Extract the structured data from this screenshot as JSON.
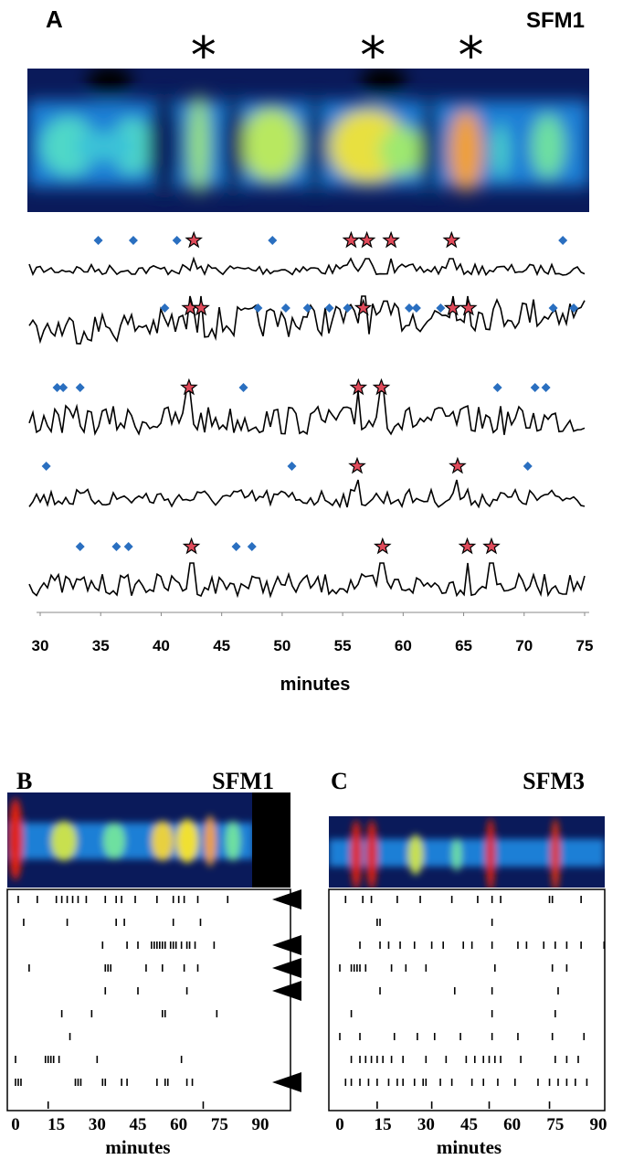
{
  "panel_a": {
    "label": "A",
    "title": "SFM1",
    "asterisks": [
      {
        "label": "*",
        "minute": 43.5
      },
      {
        "label": "*",
        "minute": 57.5
      },
      {
        "label": "*",
        "minute": 65.6
      }
    ],
    "xlim": [
      30,
      75
    ],
    "xticks": [
      30,
      35,
      40,
      45,
      50,
      55,
      60,
      65,
      70,
      75
    ],
    "xlabel": "minutes",
    "rows": [
      {
        "diamonds": [
          34.8,
          37.7,
          41.3,
          49.2,
          73.2
        ],
        "stars": [
          42.7,
          55.7,
          57,
          59,
          64
        ]
      },
      {
        "diamonds": [
          40.3,
          48,
          50.3,
          52.1,
          53.9,
          55.4,
          60.5,
          61.1,
          63.1,
          72.4,
          74.1
        ],
        "stars": [
          42.4,
          43.3,
          56.7,
          64.1,
          65.4
        ]
      },
      {
        "diamonds": [
          31.4,
          31.9,
          33.3,
          46.8,
          67.8,
          70.9,
          71.8
        ],
        "stars": [
          42.3,
          56.3,
          58.2
        ]
      },
      {
        "diamonds": [
          30.5,
          50.8,
          70.3
        ],
        "stars": [
          56.2,
          64.5
        ]
      },
      {
        "diamonds": [
          33.3,
          36.3,
          37.3,
          46.2,
          47.5
        ],
        "stars": [
          42.5,
          58.3,
          65.3,
          67.3
        ]
      }
    ]
  },
  "panel_b": {
    "label": "B",
    "title": "SFM1",
    "xlim": [
      0,
      90
    ],
    "xticks": [
      0,
      15,
      30,
      45,
      60,
      75,
      90
    ],
    "xlabel": "minutes",
    "arrow_rows": [
      0,
      2,
      3,
      4,
      8
    ],
    "rows": [
      [
        1,
        8,
        15,
        17,
        19,
        21,
        23,
        26,
        33,
        37,
        39,
        44,
        52,
        58,
        60,
        62,
        67,
        78
      ],
      [
        3,
        19,
        37,
        40,
        58,
        68
      ],
      [
        32,
        41,
        45,
        50,
        51,
        52,
        53,
        54,
        55,
        57,
        58,
        59,
        61,
        63,
        64,
        66,
        73
      ],
      [
        5,
        33,
        34,
        35,
        48,
        54,
        62,
        67
      ],
      [
        33,
        45,
        63
      ],
      [
        17,
        28,
        54,
        55,
        74
      ],
      [
        20
      ],
      [
        0,
        11,
        12,
        13,
        14,
        16,
        30,
        61
      ],
      [
        0,
        1,
        2,
        22,
        23,
        24,
        32,
        33,
        39,
        41,
        52,
        55,
        56,
        63,
        65
      ],
      [
        12,
        69
      ]
    ]
  },
  "panel_c": {
    "label": "C",
    "title": "SFM3",
    "xlim": [
      0,
      90
    ],
    "xticks": [
      0,
      15,
      30,
      45,
      60,
      75,
      90
    ],
    "xlabel": "minutes",
    "rows": [
      [
        2,
        8,
        11,
        20,
        28,
        39,
        48,
        53,
        56,
        73,
        74,
        84
      ],
      [
        13,
        14,
        53
      ],
      [
        7,
        14,
        17,
        21,
        26,
        32,
        36,
        43,
        46,
        53,
        62,
        65,
        71,
        75,
        79,
        84,
        92
      ],
      [
        0,
        4,
        5,
        6,
        7,
        9,
        18,
        23,
        30,
        54,
        74,
        79
      ],
      [
        14,
        40,
        53,
        76
      ],
      [
        4,
        53,
        75
      ],
      [
        0,
        7,
        19,
        27,
        33,
        42,
        53,
        62,
        74,
        85
      ],
      [
        4,
        7,
        9,
        11,
        13,
        15,
        18,
        22,
        30,
        37,
        44,
        47,
        50,
        52,
        54,
        56,
        63,
        75,
        79,
        83
      ],
      [
        2,
        4,
        7,
        10,
        13,
        17,
        20,
        22,
        26,
        29,
        30,
        35,
        39,
        46,
        50,
        55,
        61,
        69,
        73,
        76,
        79,
        82,
        86
      ],
      [
        13,
        32,
        52,
        73
      ]
    ]
  }
}
